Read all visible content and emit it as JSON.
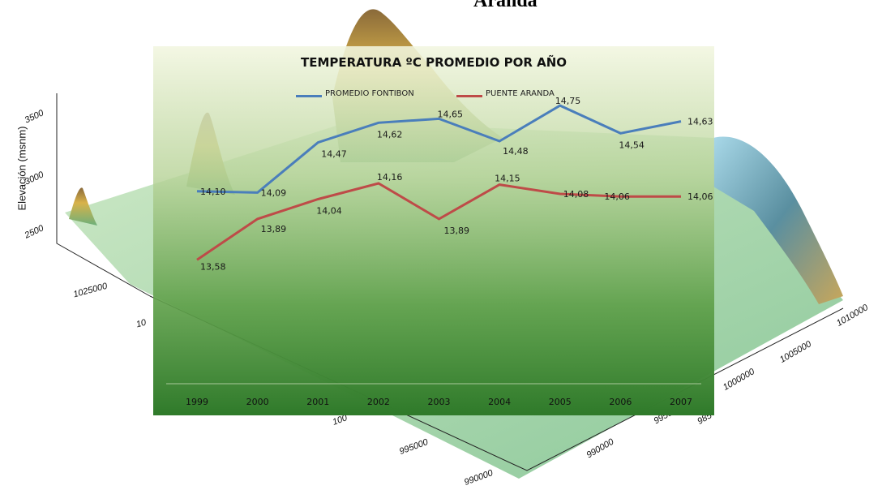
{
  "background": {
    "caption": "Aranda",
    "axis_label": "Elevación (msnm)",
    "elev_ticks": [
      "3500",
      "3000",
      "2500"
    ],
    "coord_ticks_left": [
      "1025000",
      "10"
    ],
    "coord_ticks_bottom": [
      "100",
      "995000",
      "990000",
      "990000",
      "995000"
    ],
    "coord_ticks_right": [
      "1010000",
      "1005000",
      "1000000",
      "985"
    ]
  },
  "chart_data": {
    "type": "line",
    "title": "TEMPERATURA ºC PROMEDIO POR AÑO",
    "categories": [
      "1999",
      "2000",
      "2001",
      "2002",
      "2003",
      "2004",
      "2005",
      "2006",
      "2007"
    ],
    "series": [
      {
        "name": "PROMEDIO FONTIBON",
        "color": "#4a7ebb",
        "values": [
          14.1,
          14.09,
          14.47,
          14.62,
          14.65,
          14.48,
          14.75,
          14.54,
          14.63
        ],
        "labels": [
          "14,10",
          "14,09",
          "14,47",
          "14,62",
          "14,65",
          "14,48",
          "14,75",
          "14,54",
          "14,63"
        ]
      },
      {
        "name": "PUENTE ARANDA",
        "color": "#be4b48",
        "values": [
          13.58,
          13.89,
          14.04,
          14.16,
          13.89,
          14.15,
          14.08,
          14.06,
          14.06
        ],
        "labels": [
          "13,58",
          "13,89",
          "14,04",
          "14,16",
          "13,89",
          "14,15",
          "14,08",
          "14,06",
          "14,06"
        ]
      }
    ],
    "ylim": [
      12.4,
      15.2
    ],
    "grid": false,
    "legend": "top"
  }
}
